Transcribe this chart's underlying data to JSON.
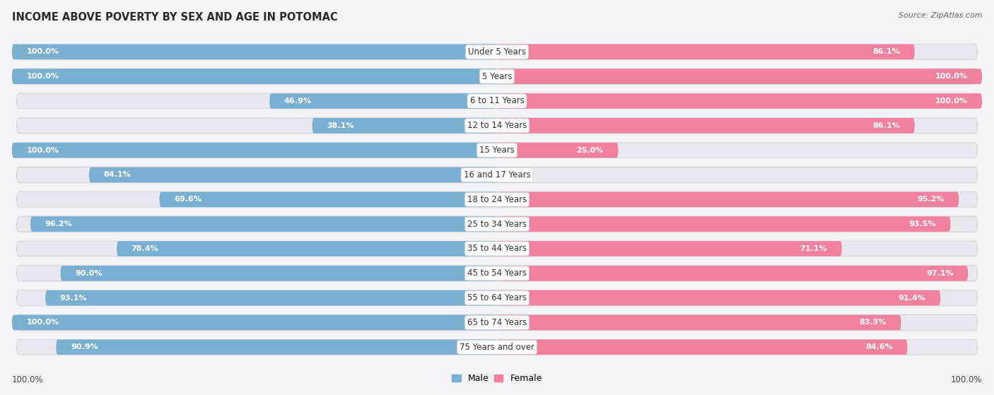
{
  "title": "INCOME ABOVE POVERTY BY SEX AND AGE IN POTOMAC",
  "source": "Source: ZipAtlas.com",
  "categories": [
    "Under 5 Years",
    "5 Years",
    "6 to 11 Years",
    "12 to 14 Years",
    "15 Years",
    "16 and 17 Years",
    "18 to 24 Years",
    "25 to 34 Years",
    "35 to 44 Years",
    "45 to 54 Years",
    "55 to 64 Years",
    "65 to 74 Years",
    "75 Years and over"
  ],
  "male_values": [
    100.0,
    100.0,
    46.9,
    38.1,
    100.0,
    84.1,
    69.6,
    96.2,
    78.4,
    90.0,
    93.1,
    100.0,
    90.9
  ],
  "female_values": [
    86.1,
    100.0,
    100.0,
    86.1,
    25.0,
    0.0,
    95.2,
    93.5,
    71.1,
    97.1,
    91.4,
    83.3,
    84.6
  ],
  "male_color": "#79afd1",
  "female_color": "#f281a0",
  "male_label": "Male",
  "female_label": "Female",
  "track_color": "#e8e8ee",
  "bg_color": "#f4f4f8",
  "label_color_inside": "#ffffff",
  "label_color_outside": "#555555",
  "center_label_color": "#333333",
  "title_fontsize": 10.5,
  "source_fontsize": 8,
  "bar_label_fontsize": 8,
  "cat_label_fontsize": 8.5
}
